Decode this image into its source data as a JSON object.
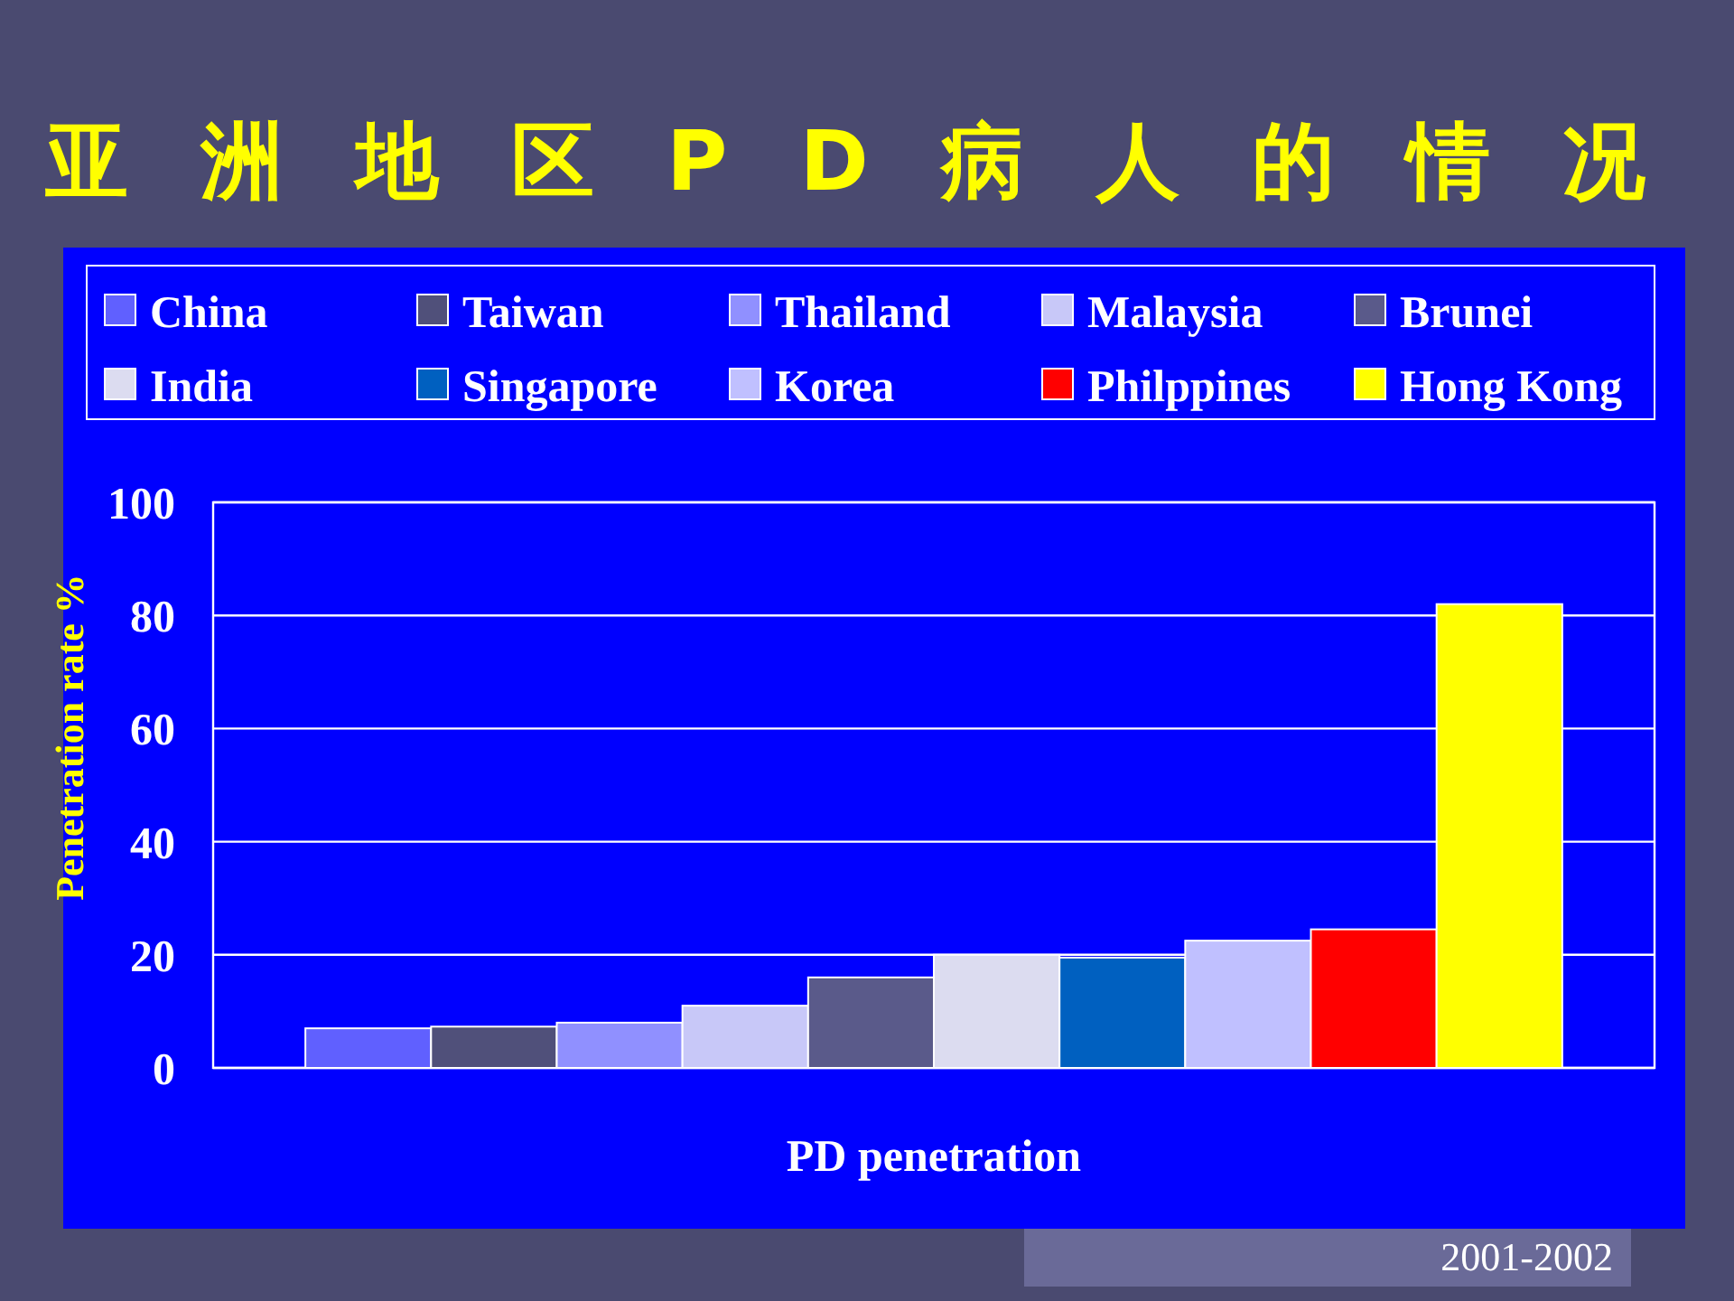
{
  "chart_data": {
    "type": "bar",
    "title": "亚洲地区PD病人的情况",
    "ylabel": "Penetration rate %",
    "categories": [
      "PD penetration"
    ],
    "series": [
      {
        "name": "China",
        "color": "#6060ff",
        "values": [
          7
        ]
      },
      {
        "name": "Taiwan",
        "color": "#50507a",
        "values": [
          7.3
        ]
      },
      {
        "name": "Thailand",
        "color": "#9090ff",
        "values": [
          8
        ]
      },
      {
        "name": "Malaysia",
        "color": "#c8c8f8",
        "values": [
          11
        ]
      },
      {
        "name": "Brunei",
        "color": "#5a5a8a",
        "values": [
          16
        ]
      },
      {
        "name": "India",
        "color": "#dcdcf0",
        "values": [
          20
        ]
      },
      {
        "name": "Singapore",
        "color": "#0060c0",
        "values": [
          19.5
        ]
      },
      {
        "name": "Korea",
        "color": "#c0c0ff",
        "values": [
          22.5
        ]
      },
      {
        "name": "Philppines",
        "color": "#ff0000",
        "values": [
          24.5
        ]
      },
      {
        "name": "Hong Kong",
        "color": "#ffff00",
        "values": [
          82
        ]
      }
    ],
    "ylim": [
      0,
      100
    ],
    "yticks": [
      0,
      20,
      40,
      60,
      80,
      100
    ],
    "grid": "y",
    "legend": "top",
    "annotations": [
      "2001-2002"
    ]
  }
}
